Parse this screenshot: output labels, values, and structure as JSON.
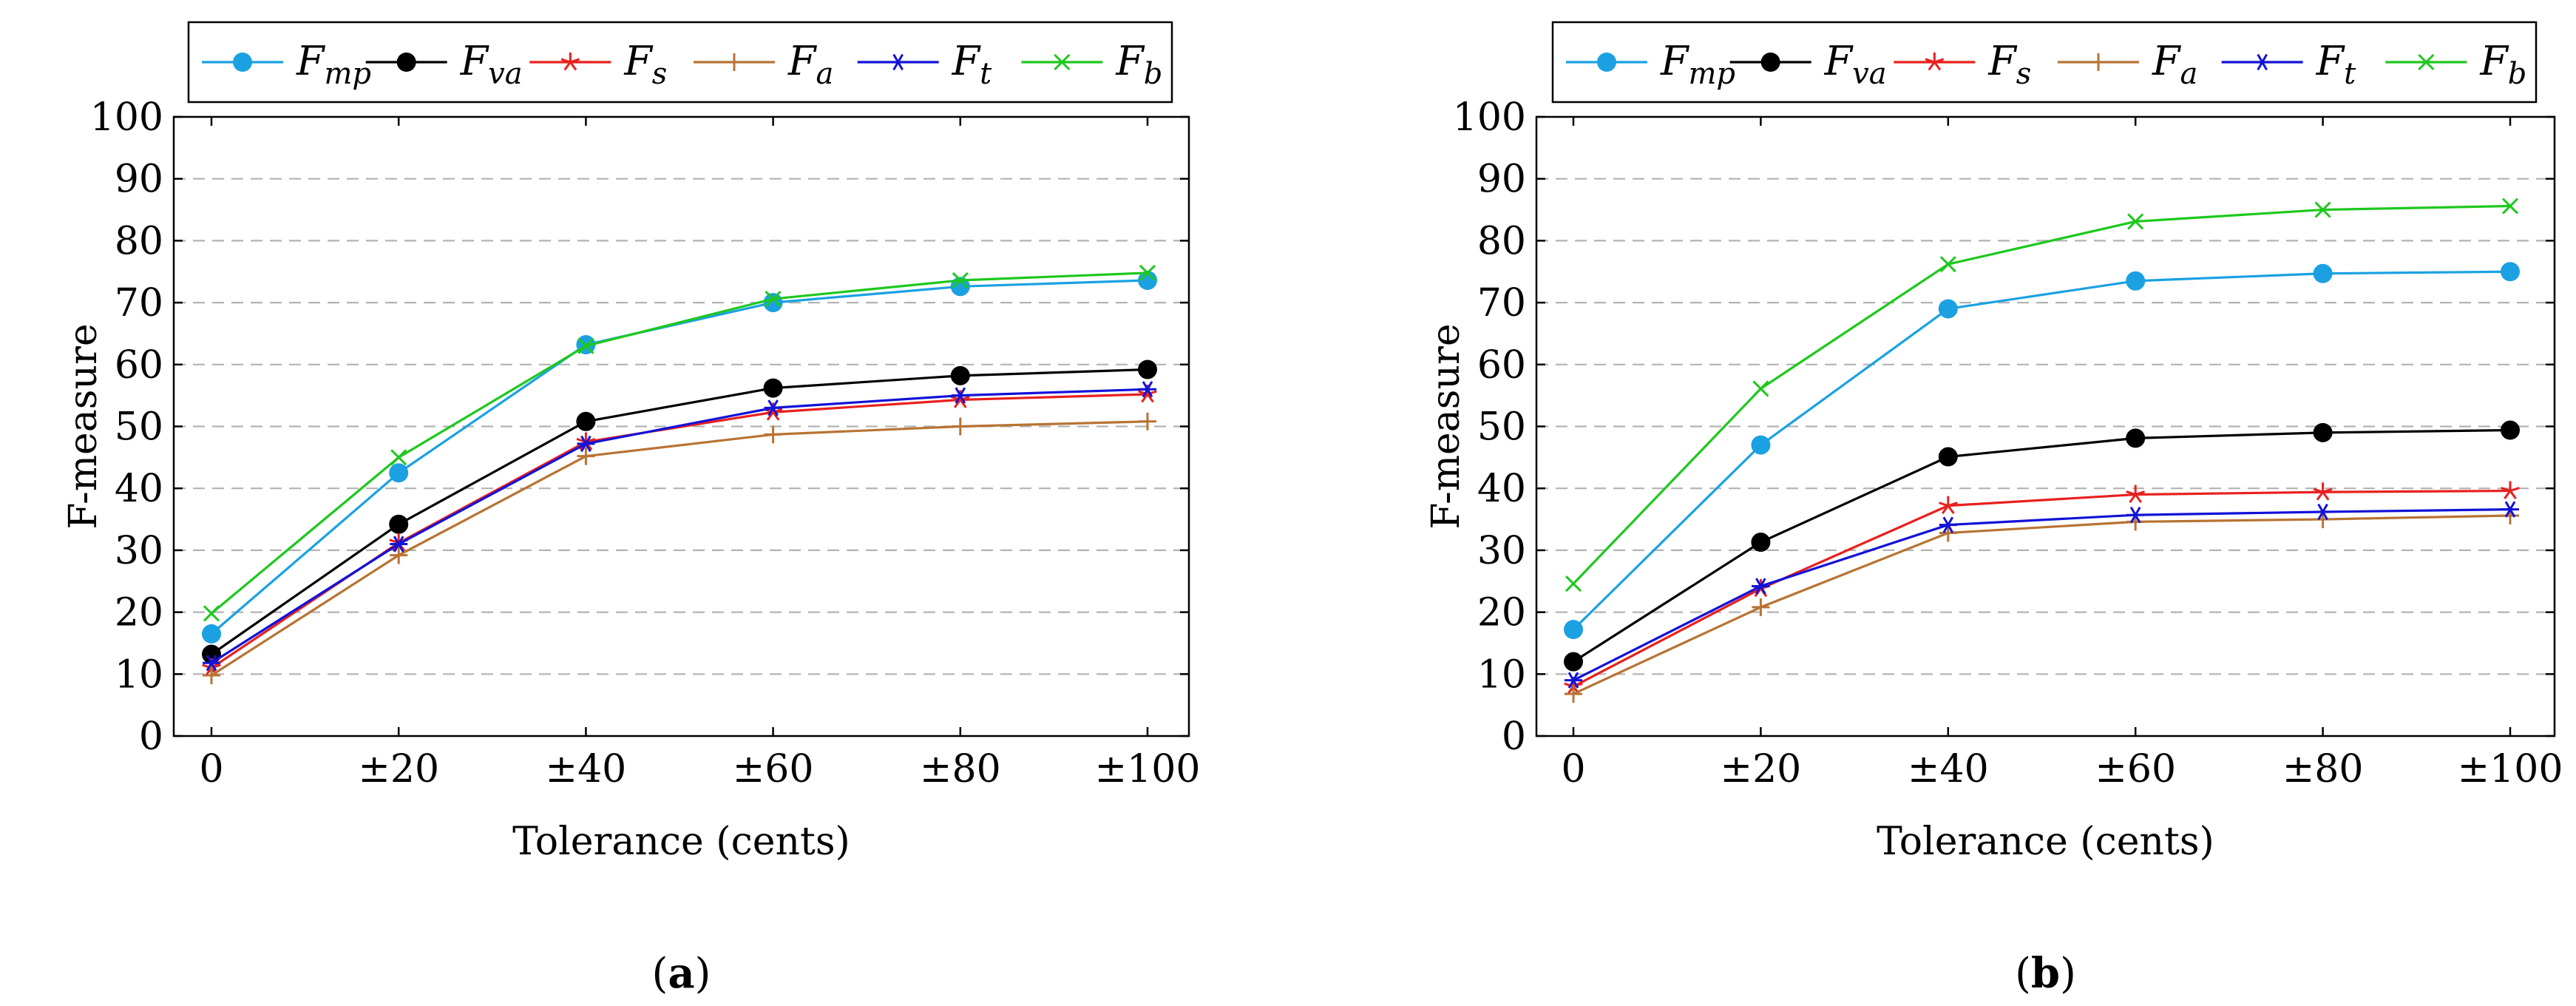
{
  "chart_data": [
    {
      "type": "line",
      "caption": "a",
      "xlabel": "Tolerance (cents)",
      "ylabel": "F-measure",
      "categories": [
        "0",
        "±20",
        "±40",
        "±60",
        "±80",
        "±100"
      ],
      "ylim": [
        0,
        100
      ],
      "yticks": [
        0,
        10,
        20,
        30,
        40,
        50,
        60,
        70,
        80,
        90,
        100
      ],
      "grid": "horizontal dashed",
      "legend": "top",
      "series": [
        {
          "name": "F",
          "sub": "mp",
          "color": "#1ba1e2",
          "marker": "circle",
          "values": [
            16.5,
            42.5,
            63.2,
            70.0,
            72.6,
            73.6
          ]
        },
        {
          "name": "F",
          "sub": "va",
          "color": "#000000",
          "marker": "dot",
          "values": [
            13.2,
            34.2,
            50.8,
            56.2,
            58.2,
            59.2
          ]
        },
        {
          "name": "F",
          "sub": "s",
          "color": "#e8201f",
          "marker": "star",
          "values": [
            11.0,
            31.2,
            47.5,
            52.3,
            54.3,
            55.2
          ]
        },
        {
          "name": "F",
          "sub": "a",
          "color": "#b87333",
          "marker": "plus",
          "values": [
            9.8,
            29.2,
            45.2,
            48.7,
            50.0,
            50.8
          ]
        },
        {
          "name": "F",
          "sub": "t",
          "color": "#1212d8",
          "marker": "asterisk",
          "values": [
            11.8,
            31.0,
            47.2,
            53.0,
            55.0,
            56.0
          ]
        },
        {
          "name": "F",
          "sub": "b",
          "color": "#1ec81e",
          "marker": "x",
          "values": [
            19.8,
            45.0,
            63.0,
            70.6,
            73.6,
            74.8
          ]
        }
      ]
    },
    {
      "type": "line",
      "caption": "b",
      "xlabel": "Tolerance (cents)",
      "ylabel": "F-measure",
      "categories": [
        "0",
        "±20",
        "±40",
        "±60",
        "±80",
        "±100"
      ],
      "ylim": [
        0,
        100
      ],
      "yticks": [
        0,
        10,
        20,
        30,
        40,
        50,
        60,
        70,
        80,
        90,
        100
      ],
      "grid": "horizontal dashed",
      "legend": "top",
      "series": [
        {
          "name": "F",
          "sub": "mp",
          "color": "#1ba1e2",
          "marker": "circle",
          "values": [
            17.2,
            47.0,
            69.0,
            73.5,
            74.7,
            75.0
          ]
        },
        {
          "name": "F",
          "sub": "va",
          "color": "#000000",
          "marker": "dot",
          "values": [
            12.0,
            31.3,
            45.1,
            48.1,
            49.0,
            49.4
          ]
        },
        {
          "name": "F",
          "sub": "s",
          "color": "#e8201f",
          "marker": "star",
          "values": [
            8.0,
            23.8,
            37.2,
            39.0,
            39.4,
            39.6
          ]
        },
        {
          "name": "F",
          "sub": "a",
          "color": "#b87333",
          "marker": "plus",
          "values": [
            6.8,
            20.8,
            32.8,
            34.6,
            35.0,
            35.6
          ]
        },
        {
          "name": "F",
          "sub": "t",
          "color": "#1212d8",
          "marker": "asterisk",
          "values": [
            9.0,
            24.2,
            34.1,
            35.7,
            36.2,
            36.6
          ]
        },
        {
          "name": "F",
          "sub": "b",
          "color": "#1ec81e",
          "marker": "x",
          "values": [
            24.6,
            56.1,
            76.2,
            83.1,
            85.0,
            85.6
          ]
        }
      ]
    }
  ]
}
